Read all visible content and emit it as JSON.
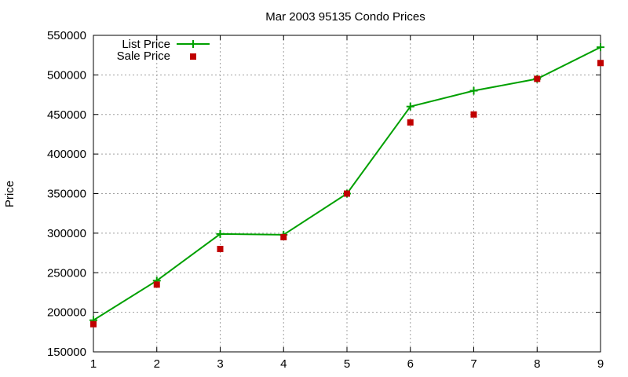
{
  "chart_data": {
    "type": "line",
    "title": "Mar 2003 95135 Condo Prices",
    "xlabel": "",
    "ylabel": "Price",
    "x": [
      1,
      2,
      3,
      4,
      5,
      6,
      7,
      8,
      9
    ],
    "xlim": [
      1,
      9
    ],
    "ylim": [
      150000,
      550000
    ],
    "xticks": [
      "1",
      "2",
      "3",
      "4",
      "5",
      "6",
      "7",
      "8",
      "9"
    ],
    "yticks": [
      "150000",
      "200000",
      "250000",
      "300000",
      "350000",
      "400000",
      "450000",
      "500000",
      "550000"
    ],
    "grid": true,
    "legend_position": "top-left",
    "series": [
      {
        "name": "List Price",
        "style": "linespoints",
        "color": "#00a000",
        "values": [
          190000,
          240000,
          299000,
          298000,
          350000,
          460000,
          480000,
          495000,
          535000
        ]
      },
      {
        "name": "Sale Price",
        "style": "points",
        "color": "#c00000",
        "values": [
          185000,
          235000,
          280000,
          295000,
          350000,
          440000,
          450000,
          495000,
          515000
        ]
      }
    ]
  },
  "legend": {
    "items": [
      {
        "label": "List Price"
      },
      {
        "label": "Sale Price"
      }
    ]
  }
}
